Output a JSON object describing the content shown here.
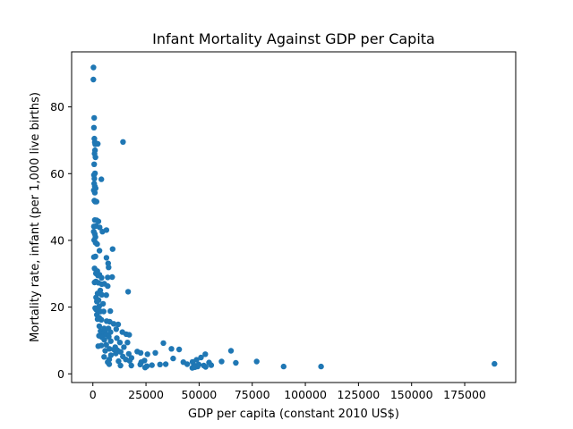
{
  "chart_data": {
    "type": "scatter",
    "title": "Infant Mortality Against GDP per Capita",
    "xlabel": "GDP per capita (constant 2010 US$)",
    "ylabel": "Mortality rate, infant (per 1,000 live births)",
    "xlim": [
      -10000,
      199000
    ],
    "ylim": [
      -2.6,
      96.5
    ],
    "x_ticks": [
      0,
      25000,
      50000,
      75000,
      100000,
      125000,
      150000,
      175000
    ],
    "x_tick_labels": [
      "0",
      "25000",
      "50000",
      "75000",
      "100000",
      "125000",
      "150000",
      "175000"
    ],
    "y_ticks": [
      0,
      20,
      40,
      60,
      80
    ],
    "y_tick_labels": [
      "0",
      "20",
      "40",
      "60",
      "80"
    ],
    "grid": false,
    "legend": "none",
    "marker_color": "#1f77b4",
    "points": [
      [
        300,
        91.8
      ],
      [
        250,
        88.2
      ],
      [
        600,
        76.7
      ],
      [
        500,
        73.8
      ],
      [
        700,
        70.5
      ],
      [
        900,
        69.4
      ],
      [
        1100,
        68.8
      ],
      [
        2300,
        68.9
      ],
      [
        14200,
        69.5
      ],
      [
        1000,
        67.0
      ],
      [
        800,
        66.0
      ],
      [
        1200,
        64.9
      ],
      [
        600,
        62.8
      ],
      [
        1000,
        60.1
      ],
      [
        500,
        59.6
      ],
      [
        700,
        58.5
      ],
      [
        4000,
        58.3
      ],
      [
        600,
        57.0
      ],
      [
        900,
        56.2
      ],
      [
        1300,
        55.6
      ],
      [
        400,
        55.0
      ],
      [
        900,
        54.3
      ],
      [
        700,
        51.9
      ],
      [
        1100,
        51.6
      ],
      [
        1700,
        51.6
      ],
      [
        900,
        46.1
      ],
      [
        1800,
        46.0
      ],
      [
        2600,
        45.7
      ],
      [
        500,
        44.2
      ],
      [
        1500,
        44.3
      ],
      [
        3200,
        43.9
      ],
      [
        6400,
        43.1
      ],
      [
        4500,
        42.6
      ],
      [
        400,
        42.6
      ],
      [
        900,
        41.9
      ],
      [
        1200,
        41.0
      ],
      [
        600,
        40.1
      ],
      [
        1300,
        39.3
      ],
      [
        2000,
        38.9
      ],
      [
        9300,
        37.4
      ],
      [
        3100,
        36.9
      ],
      [
        500,
        35.0
      ],
      [
        1200,
        35.2
      ],
      [
        6400,
        34.8
      ],
      [
        7200,
        33.1
      ],
      [
        7400,
        31.9
      ],
      [
        800,
        31.6
      ],
      [
        2100,
        30.8
      ],
      [
        1400,
        30.1
      ],
      [
        3100,
        29.7
      ],
      [
        2400,
        29.5
      ],
      [
        4100,
        28.8
      ],
      [
        7000,
        28.9
      ],
      [
        9100,
        29.0
      ],
      [
        800,
        27.4
      ],
      [
        1400,
        27.7
      ],
      [
        2600,
        27.3
      ],
      [
        5400,
        27.0
      ],
      [
        4200,
        26.9
      ],
      [
        7000,
        26.3
      ],
      [
        3500,
        25.0
      ],
      [
        16600,
        24.6
      ],
      [
        2200,
        24.1
      ],
      [
        4200,
        23.7
      ],
      [
        6300,
        23.6
      ],
      [
        1500,
        22.9
      ],
      [
        2700,
        22.1
      ],
      [
        1900,
        21.7
      ],
      [
        4800,
        21.0
      ],
      [
        3000,
        20.3
      ],
      [
        1100,
        19.7
      ],
      [
        1500,
        19.3
      ],
      [
        2400,
        19.0
      ],
      [
        3600,
        18.7
      ],
      [
        5100,
        18.7
      ],
      [
        8200,
        18.8
      ],
      [
        1900,
        17.7
      ],
      [
        3000,
        16.8
      ],
      [
        2200,
        16.4
      ],
      [
        4000,
        16.2
      ],
      [
        6500,
        15.8
      ],
      [
        7900,
        15.6
      ],
      [
        9800,
        15.0
      ],
      [
        11900,
        14.8
      ],
      [
        3000,
        14.3
      ],
      [
        5300,
        13.6
      ],
      [
        7300,
        13.6
      ],
      [
        11000,
        13.4
      ],
      [
        3600,
        12.8
      ],
      [
        5600,
        12.7
      ],
      [
        8300,
        12.5
      ],
      [
        13900,
        12.5
      ],
      [
        4600,
        12.0
      ],
      [
        6100,
        11.8
      ],
      [
        15700,
        11.9
      ],
      [
        17100,
        11.7
      ],
      [
        2900,
        11.4
      ],
      [
        4200,
        11.0
      ],
      [
        7500,
        11.1
      ],
      [
        11300,
        10.7
      ],
      [
        5400,
        10.2
      ],
      [
        8400,
        9.8
      ],
      [
        12700,
        9.4
      ],
      [
        16300,
        9.4
      ],
      [
        33200,
        9.2
      ],
      [
        4000,
        8.5
      ],
      [
        2500,
        8.3
      ],
      [
        6300,
        8.7
      ],
      [
        10500,
        8.0
      ],
      [
        14600,
        8.0
      ],
      [
        7800,
        7.5
      ],
      [
        9900,
        7.3
      ],
      [
        11500,
        7.1
      ],
      [
        37000,
        7.5
      ],
      [
        40600,
        7.3
      ],
      [
        5800,
        6.9
      ],
      [
        13100,
        6.6
      ],
      [
        20900,
        6.7
      ],
      [
        65000,
        6.9
      ],
      [
        10800,
        6.1
      ],
      [
        16900,
        6.0
      ],
      [
        22500,
        6.3
      ],
      [
        25700,
        5.9
      ],
      [
        29400,
        6.3
      ],
      [
        52900,
        5.9
      ],
      [
        8500,
        5.6
      ],
      [
        14100,
        5.2
      ],
      [
        5300,
        5.1
      ],
      [
        18200,
        4.8
      ],
      [
        37800,
        4.6
      ],
      [
        50900,
        4.9
      ],
      [
        7700,
        4.3
      ],
      [
        15500,
        4.3
      ],
      [
        24300,
        4.0
      ],
      [
        48800,
        4.2
      ],
      [
        7000,
        3.5
      ],
      [
        12100,
        3.8
      ],
      [
        17300,
        3.9
      ],
      [
        22800,
        3.5
      ],
      [
        42600,
        3.5
      ],
      [
        46900,
        3.6
      ],
      [
        54700,
        3.4
      ],
      [
        60600,
        3.7
      ],
      [
        67300,
        3.3
      ],
      [
        77100,
        3.7
      ],
      [
        189000,
        3.0
      ],
      [
        22300,
        2.8
      ],
      [
        27800,
        2.6
      ],
      [
        31600,
        2.8
      ],
      [
        34300,
        2.9
      ],
      [
        44400,
        2.9
      ],
      [
        47600,
        2.6
      ],
      [
        49800,
        2.8
      ],
      [
        52200,
        2.5
      ],
      [
        55700,
        2.6
      ],
      [
        7700,
        2.9
      ],
      [
        13000,
        2.5
      ],
      [
        18100,
        2.5
      ],
      [
        25400,
        2.3
      ],
      [
        49300,
        2.2
      ],
      [
        53100,
        2.1
      ],
      [
        89800,
        2.2
      ],
      [
        107400,
        2.2
      ],
      [
        46800,
        1.8
      ],
      [
        48000,
        2.0
      ],
      [
        24600,
        1.9
      ]
    ]
  }
}
